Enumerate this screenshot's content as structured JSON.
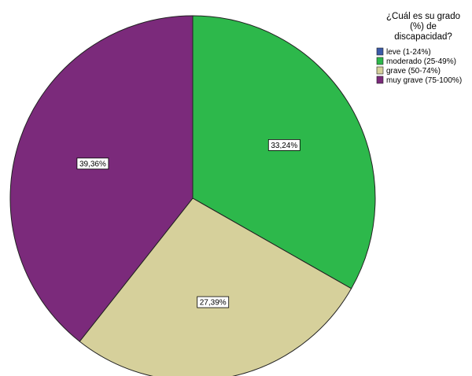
{
  "chart_data": {
    "type": "pie",
    "legend_title": [
      "¿Cuál es su grado",
      "(%) de",
      "discapacidad?"
    ],
    "legend_position": "top-right",
    "categories": [
      "leve (1-24%)",
      "moderado (25-49%)",
      "grave (50-74%)",
      "muy  grave (75-100%)"
    ],
    "values": [
      0,
      33.24,
      27.39,
      39.36
    ],
    "value_labels": [
      "",
      "33,24%",
      "27,39%",
      "39,36%"
    ],
    "colors": [
      "#3b5aa8",
      "#2db84b",
      "#d6d09b",
      "#7b2a7b"
    ],
    "start": "12 o'clock",
    "direction": "clockwise"
  }
}
